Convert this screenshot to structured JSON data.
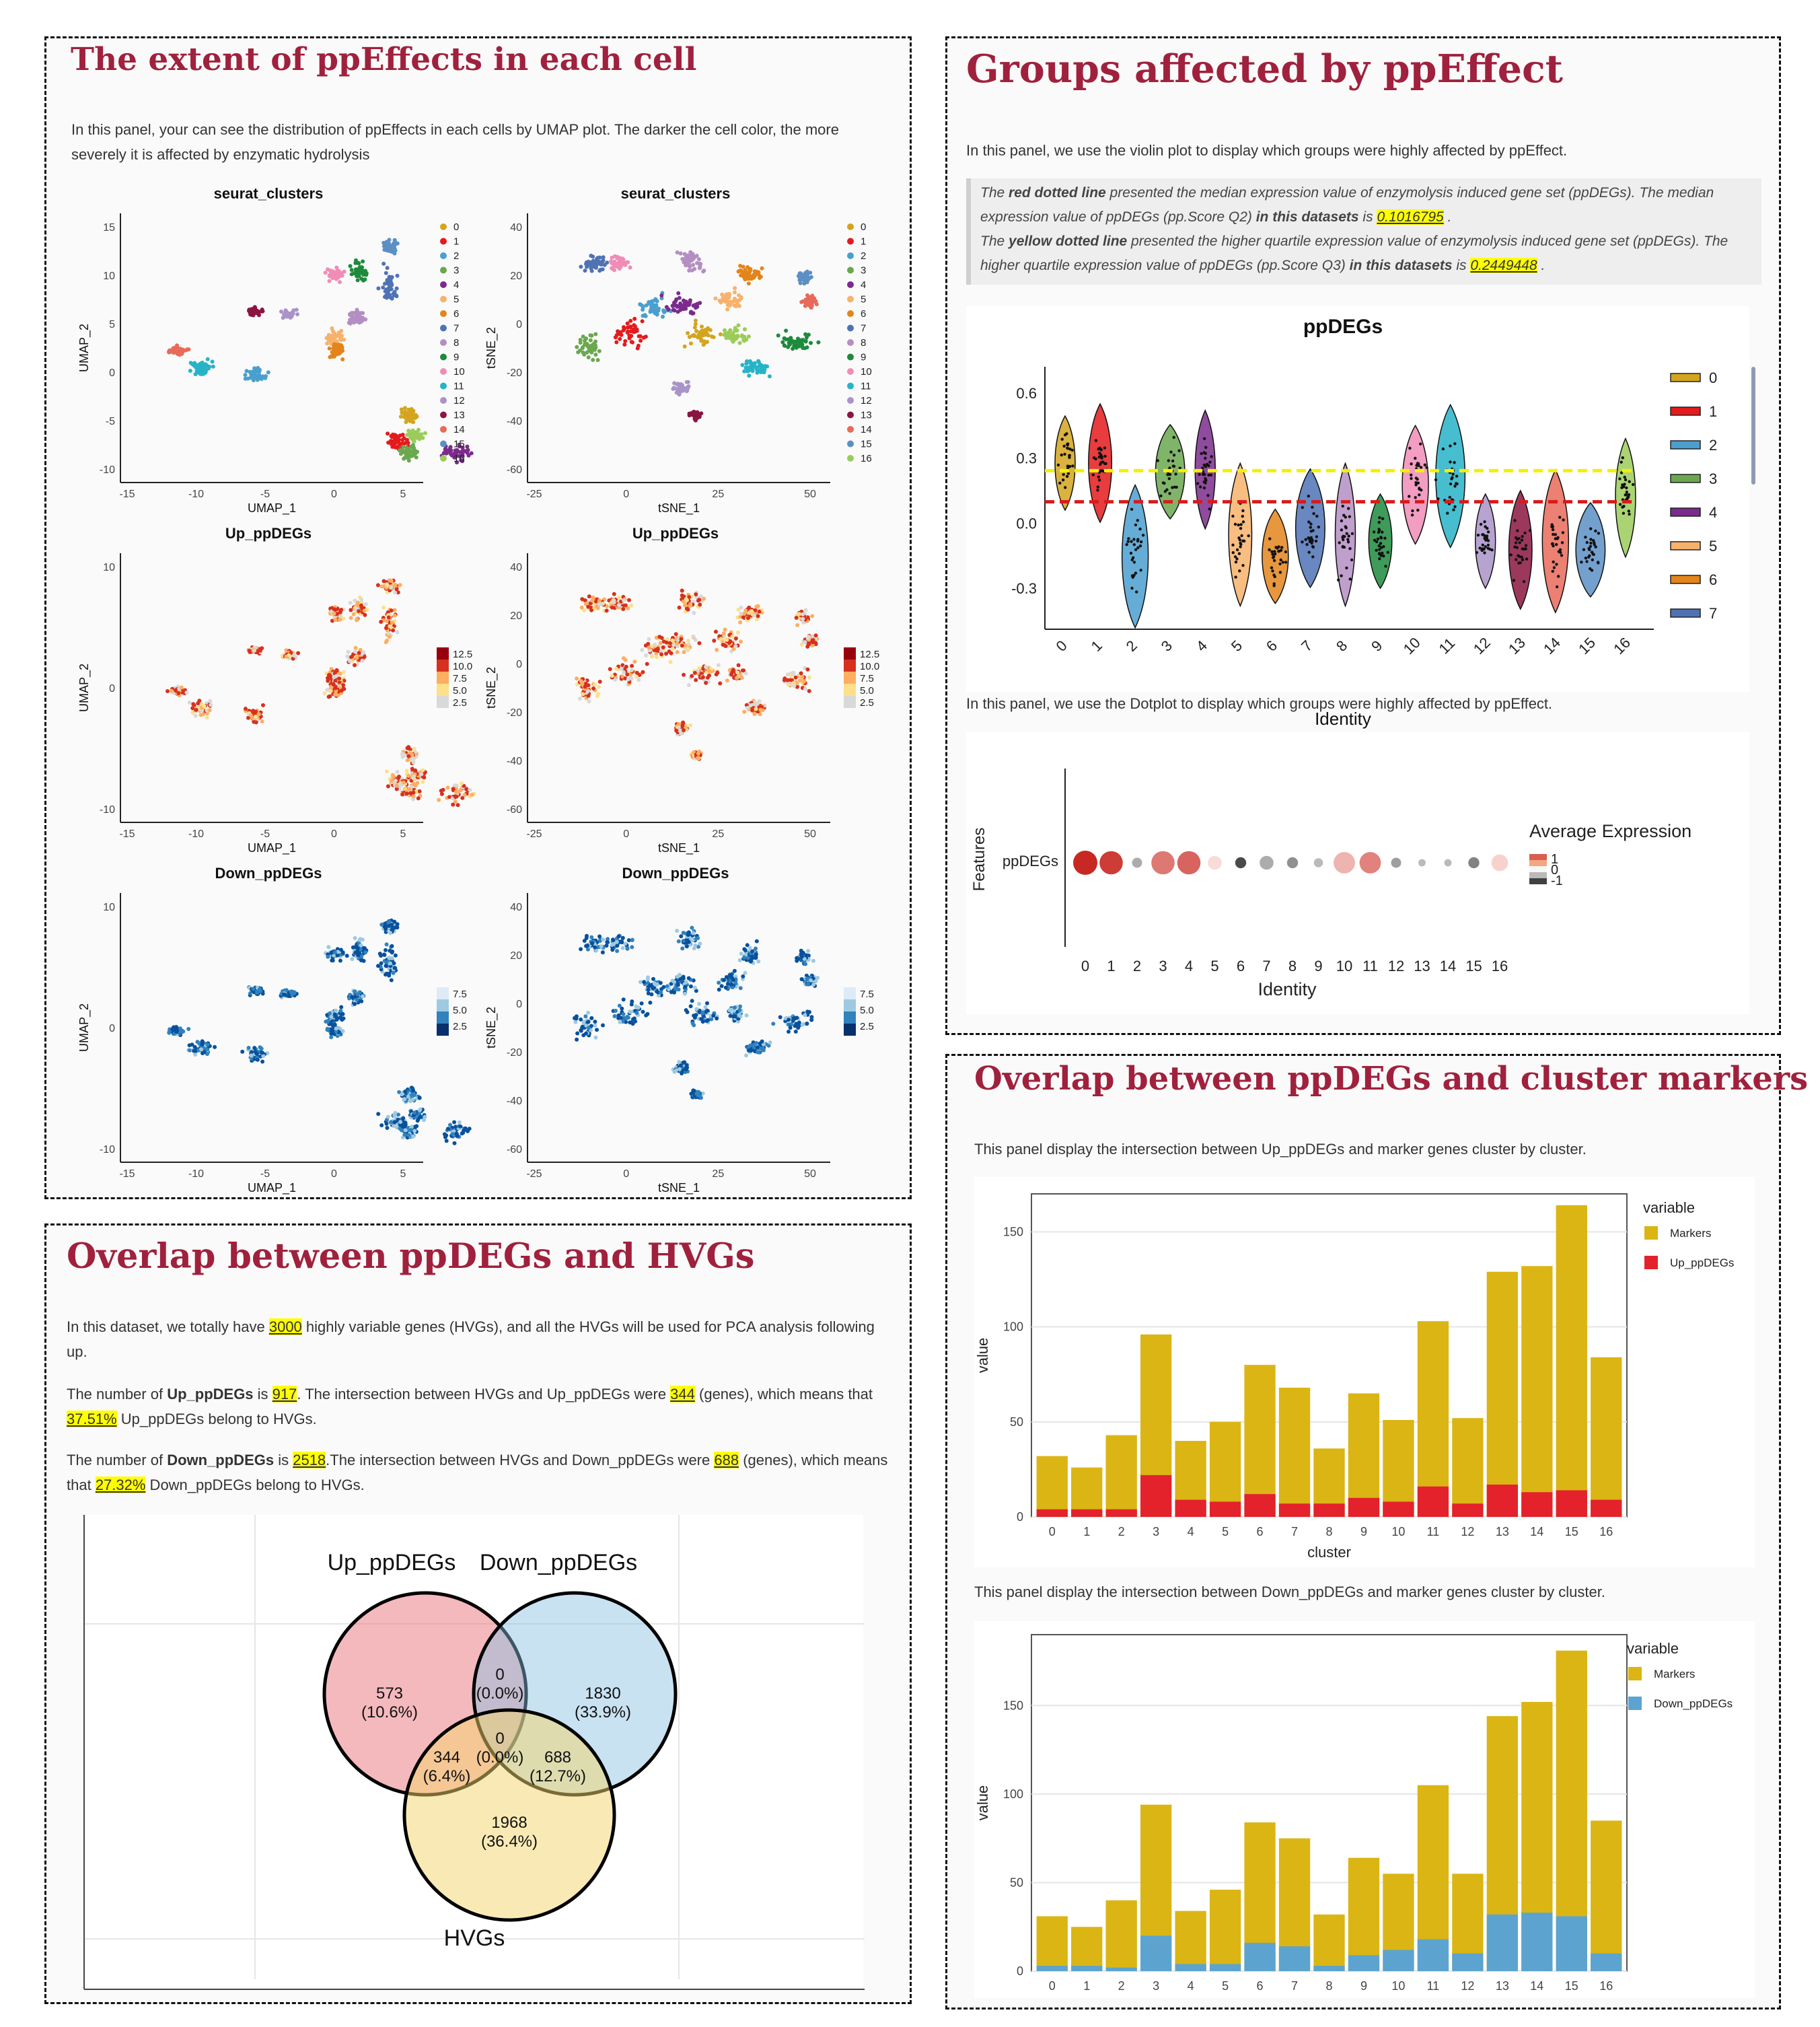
{
  "p1": {
    "title": "The extent of ppEffects in each cell",
    "desc": "In this panel, your can see the distribution of ppEffects in each cells by UMAP plot. The darker the cell color, the more severely it is affected by enzymatic hydrolysis",
    "plots": [
      {
        "title": "seurat_clusters",
        "xlabel": "UMAP_1",
        "ylabel": "UMAP_2",
        "xticks": [
          "-15",
          "-10",
          "-5",
          "0",
          "5"
        ],
        "yticks": [
          "15",
          "10",
          "5",
          "0",
          "-5",
          "-10"
        ]
      },
      {
        "title": "seurat_clusters",
        "xlabel": "tSNE_1",
        "ylabel": "tSNE_2",
        "xticks": [
          "-25",
          "0",
          "25",
          "50"
        ],
        "yticks": [
          "40",
          "20",
          "0",
          "-20",
          "-40",
          "-60"
        ]
      },
      {
        "title": "Up_ppDEGs",
        "xlabel": "UMAP_1",
        "ylabel": "UMAP_2",
        "xticks": [
          "-15",
          "-10",
          "-5",
          "0",
          "5"
        ],
        "yticks": [
          "10",
          "0",
          "-10"
        ]
      },
      {
        "title": "Up_ppDEGs",
        "xlabel": "tSNE_1",
        "ylabel": "tSNE_2",
        "xticks": [
          "-25",
          "0",
          "25",
          "50"
        ],
        "yticks": [
          "40",
          "20",
          "0",
          "-20",
          "-40",
          "-60"
        ]
      },
      {
        "title": "Down_ppDEGs",
        "xlabel": "UMAP_1",
        "ylabel": "UMAP_2",
        "xticks": [
          "-15",
          "-10",
          "-5",
          "0",
          "5"
        ],
        "yticks": [
          "10",
          "0",
          "-10"
        ]
      },
      {
        "title": "Down_ppDEGs",
        "xlabel": "tSNE_1",
        "ylabel": "tSNE_2",
        "xticks": [
          "-25",
          "0",
          "25",
          "50"
        ],
        "yticks": [
          "40",
          "20",
          "0",
          "-20",
          "-40",
          "-60"
        ]
      }
    ],
    "cluster_legend": [
      "0",
      "1",
      "2",
      "3",
      "4",
      "5",
      "6",
      "7",
      "8",
      "9",
      "10",
      "11",
      "12",
      "13",
      "14",
      "15",
      "16"
    ],
    "up_scale": [
      "12.5",
      "10.0",
      "7.5",
      "5.0",
      "2.5"
    ],
    "down_scale": [
      "7.5",
      "5.0",
      "2.5"
    ]
  },
  "p2": {
    "title": "Groups affected by ppEffect",
    "desc": "In this panel, we use the violin plot to display which groups were highly affected by ppEffect.",
    "q": {
      "a1": "The ",
      "a2": "red dotted line",
      "a3": " presented the median expression value of enzymolysis induced gene set (ppDEGs). The median expression value of ppDEGs (pp.Score Q2) ",
      "a4": "in this datasets",
      "a5": " is ",
      "v1": "0.1016795",
      "a6": " .",
      "b1": "The ",
      "b2": "yellow dotted line",
      "b3": " presented the higher quartile expression value of enzymolysis induced gene set (ppDEGs). The higher quartile expression value of ppDEGs (pp.Score Q3) ",
      "b4": "in this datasets",
      "b5": " is ",
      "v2": "0.2449448",
      "b6": " ."
    },
    "violin": {
      "title": "ppDEGs",
      "xlabel": "Identity",
      "yticks": [
        "0.6",
        "0.3",
        "0.0",
        "-0.3"
      ],
      "categories": [
        "0",
        "1",
        "2",
        "3",
        "4",
        "5",
        "6",
        "7",
        "8",
        "9",
        "10",
        "11",
        "12",
        "13",
        "14",
        "15",
        "16"
      ],
      "legend": [
        "0",
        "1",
        "2",
        "3",
        "4",
        "5",
        "6",
        "7"
      ],
      "median": 0.1016795,
      "q3": 0.2449448,
      "centers": [
        0.28,
        0.28,
        -0.15,
        0.24,
        0.25,
        -0.05,
        -0.15,
        -0.02,
        -0.05,
        -0.08,
        0.18,
        0.22,
        -0.08,
        -0.12,
        -0.08,
        -0.12,
        0.12
      ]
    },
    "desc2": "In this panel, we use the Dotplot to display which groups were highly affected by ppEffect.",
    "dot": {
      "ylabel": "Features",
      "feature": "ppDEGs",
      "xlabel": "Identity",
      "categories": [
        "0",
        "1",
        "2",
        "3",
        "4",
        "5",
        "6",
        "7",
        "8",
        "9",
        "10",
        "11",
        "12",
        "13",
        "14",
        "15",
        "16"
      ],
      "legend_title": "Average Expression",
      "legend_ticks": [
        "1",
        "0",
        "-1"
      ],
      "avg": [
        1.0,
        0.9,
        -0.2,
        0.6,
        0.7,
        0.1,
        -0.9,
        -0.2,
        -0.4,
        -0.1,
        0.3,
        0.55,
        -0.3,
        -0.1,
        -0.1,
        -0.5,
        0.15
      ],
      "size": [
        1.0,
        0.95,
        0.25,
        0.95,
        0.95,
        0.45,
        0.3,
        0.45,
        0.3,
        0.2,
        0.85,
        0.85,
        0.25,
        0.1,
        0.1,
        0.3,
        0.6
      ]
    }
  },
  "p3": {
    "title": "Overlap between ppDEGs and HVGs",
    "l1a": "In this dataset, we totally have ",
    "l1v": "3000",
    "l1b": " highly variable genes (HVGs), and all the HVGs will be used for PCA analysis following up.",
    "l2a": "The number of ",
    "l2b": "Up_ppDEGs",
    "l2c": " is ",
    "l2v1": "917",
    "l2d": ". The intersection between HVGs and Up_ppDEGs were ",
    "l2v2": "344",
    "l2e": " (genes), which means that ",
    "l2v3": "37.51%",
    "l2f": " Up_ppDEGs belong to HVGs.",
    "l3a": "The number of ",
    "l3b": "Down_ppDEGs",
    "l3c": " is ",
    "l3v1": "2518",
    "l3d": ".The intersection between HVGs and Down_ppDEGs were ",
    "l3v2": "688",
    "l3e": " (genes), which means that ",
    "l3v3": "27.32%",
    "l3f": " Down_ppDEGs belong to HVGs.",
    "venn": {
      "label_up": "Up_ppDEGs",
      "label_down": "Down_ppDEGs",
      "label_hvg": "HVGs",
      "r1a": "573",
      "r1b": "(10.6%)",
      "r2a": "0",
      "r2b": "(0.0%)",
      "r3a": "1830",
      "r3b": "(33.9%)",
      "r4a": "0",
      "r4b": "(0.0%)",
      "r5a": "344",
      "r5b": "(6.4%)",
      "r6a": "688",
      "r6b": "(12.7%)",
      "r7a": "1968",
      "r7b": "(36.4%)"
    }
  },
  "p4": {
    "title": "Overlap between ppDEGs and cluster markers",
    "desc1": "This panel display the intersection between Up_ppDEGs and marker genes cluster by cluster.",
    "desc2": "This panel display the intersection between Down_ppDEGs and marker genes cluster by cluster."
  },
  "chart_data": [
    {
      "type": "bar",
      "xlabel": "cluster",
      "ylabel": "value",
      "ylim": [
        0,
        170
      ],
      "yticks": [
        "0",
        "50",
        "100",
        "150"
      ],
      "legend_title": "variable",
      "categories": [
        "0",
        "1",
        "2",
        "3",
        "4",
        "5",
        "6",
        "7",
        "8",
        "9",
        "10",
        "11",
        "12",
        "13",
        "14",
        "15",
        "16"
      ],
      "series": [
        {
          "name": "Markers",
          "color": "#dbb514",
          "values": [
            32,
            26,
            43,
            96,
            40,
            50,
            80,
            68,
            36,
            65,
            51,
            103,
            52,
            129,
            132,
            164,
            84
          ]
        },
        {
          "name": "Up_ppDEGs",
          "color": "#e4222b",
          "values": [
            4,
            4,
            4,
            22,
            9,
            8,
            12,
            7,
            7,
            10,
            8,
            16,
            7,
            17,
            13,
            14,
            9
          ]
        }
      ]
    },
    {
      "type": "bar",
      "xlabel": "",
      "ylabel": "value",
      "ylim": [
        0,
        190
      ],
      "yticks": [
        "0",
        "50",
        "100",
        "150"
      ],
      "legend_title": "variable",
      "categories": [
        "0",
        "1",
        "2",
        "3",
        "4",
        "5",
        "6",
        "7",
        "8",
        "9",
        "10",
        "11",
        "12",
        "13",
        "14",
        "15",
        "16"
      ],
      "series": [
        {
          "name": "Markers",
          "color": "#dbb514",
          "values": [
            31,
            25,
            40,
            94,
            34,
            46,
            84,
            75,
            32,
            64,
            55,
            105,
            55,
            144,
            152,
            181,
            85
          ]
        },
        {
          "name": "Down_ppDEGs",
          "color": "#5ca4cf",
          "values": [
            3,
            3,
            2,
            20,
            4,
            4,
            16,
            14,
            3,
            9,
            12,
            18,
            10,
            32,
            33,
            31,
            10
          ]
        }
      ]
    }
  ]
}
